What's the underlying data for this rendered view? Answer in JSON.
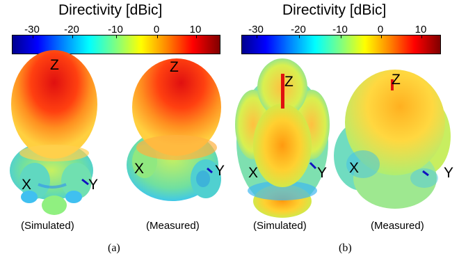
{
  "panels": [
    {
      "caption": "(a)",
      "colorbar": {
        "title": "Directivity [dBic]",
        "ticks": [
          "-30",
          "-20",
          "-10",
          "0",
          "10"
        ],
        "colormap": "jet",
        "colors": [
          "#00008f",
          "#0000ff",
          "#0080ff",
          "#00ffff",
          "#80ff80",
          "#ffff00",
          "#ff8000",
          "#ff0000",
          "#800000"
        ]
      },
      "patterns": [
        {
          "caption": "(Simulated)",
          "axes": {
            "z": "Z",
            "x": "X",
            "y": "Y"
          }
        },
        {
          "caption": "(Measured)",
          "axes": {
            "z": "Z",
            "x": "X",
            "y": "Y"
          }
        }
      ]
    },
    {
      "caption": "(b)",
      "colorbar": {
        "title": "Directivity [dBic]",
        "ticks": [
          "-30",
          "-20",
          "-10",
          "0",
          "10"
        ],
        "colormap": "jet",
        "colors": [
          "#00008f",
          "#0000ff",
          "#0080ff",
          "#00ffff",
          "#80ff80",
          "#ffff00",
          "#ff8000",
          "#ff0000",
          "#800000"
        ]
      },
      "patterns": [
        {
          "caption": "(Simulated)",
          "axes": {
            "z": "Z",
            "x": "X",
            "y": "Y"
          }
        },
        {
          "caption": "(Measured)",
          "axes": {
            "z": "Z",
            "x": "X",
            "y": "Y"
          }
        }
      ]
    }
  ]
}
